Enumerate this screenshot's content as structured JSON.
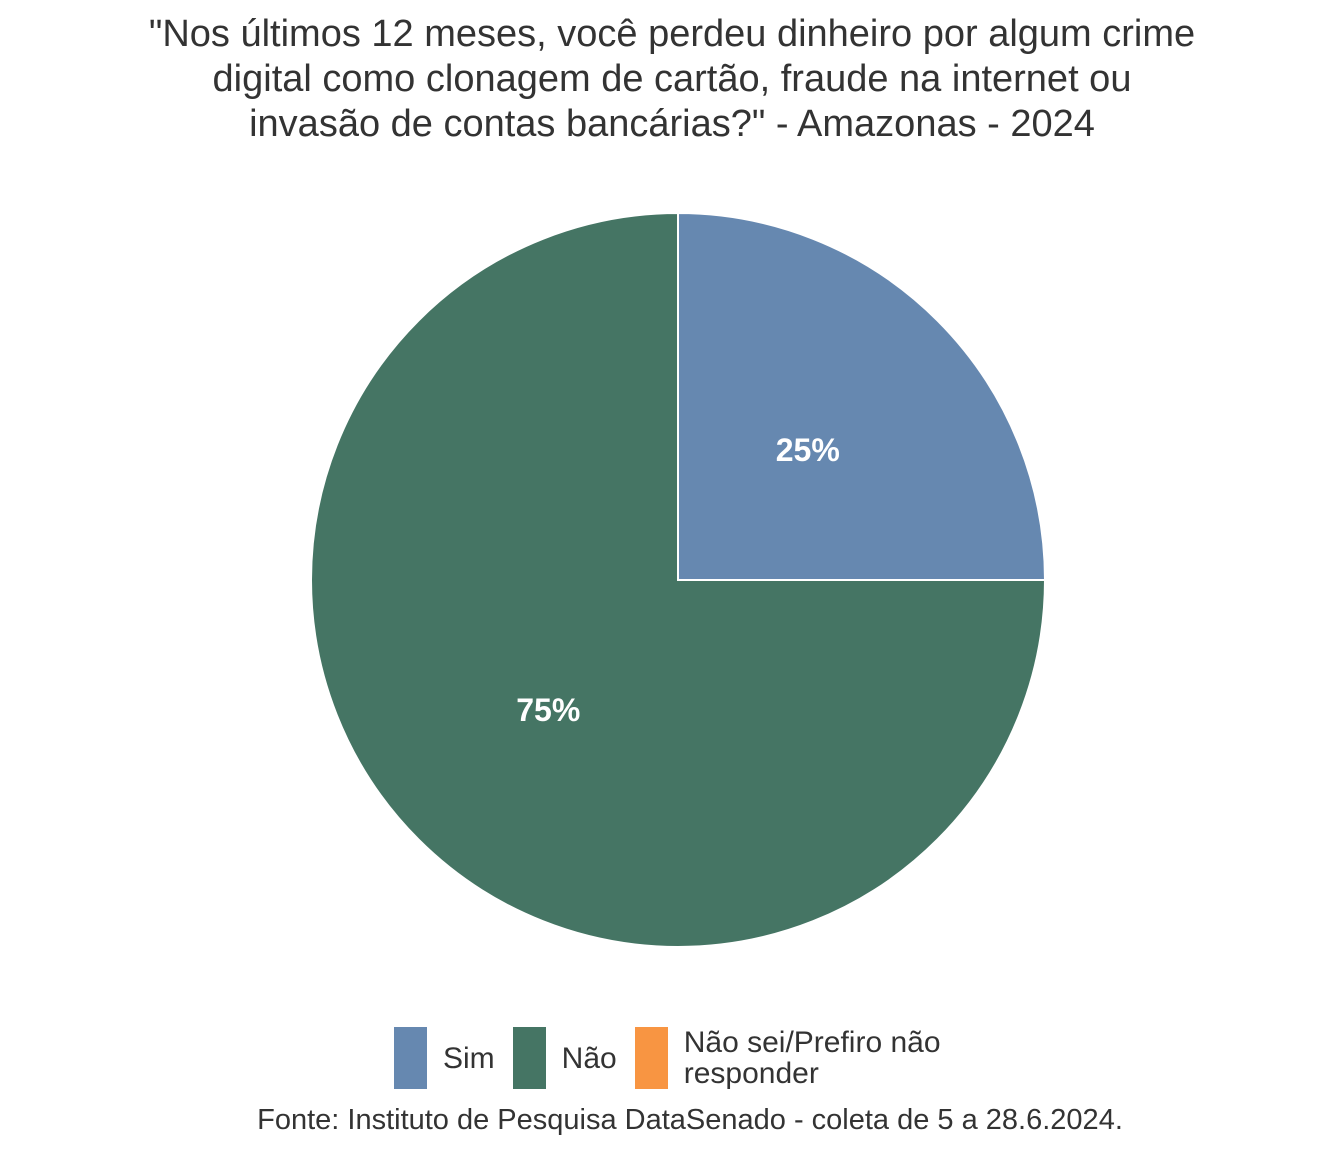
{
  "chart_data": {
    "type": "pie",
    "title": "\"Nos últimos 12 meses, você perdeu dinheiro por algum crime digital como clonagem de cartão, fraude na internet ou invasão de contas bancárias?\" - Amazonas - 2024",
    "title_lines": [
      "\"Nos últimos 12 meses, você perdeu dinheiro por algum crime",
      "digital como clonagem de cartão, fraude na internet ou",
      "invasão de contas bancárias?\" - Amazonas - 2024"
    ],
    "categories": [
      "Sim",
      "Não",
      "Não sei/Prefiro não responder"
    ],
    "values": [
      25,
      75,
      0
    ],
    "labels": [
      "25%",
      "75%",
      ""
    ],
    "colors": [
      "#6688b0",
      "#457564",
      "#f89542"
    ],
    "legend_position": "bottom",
    "source": "Fonte: Instituto de Pesquisa DataSenado - coleta de 5 a 28.6.2024."
  }
}
